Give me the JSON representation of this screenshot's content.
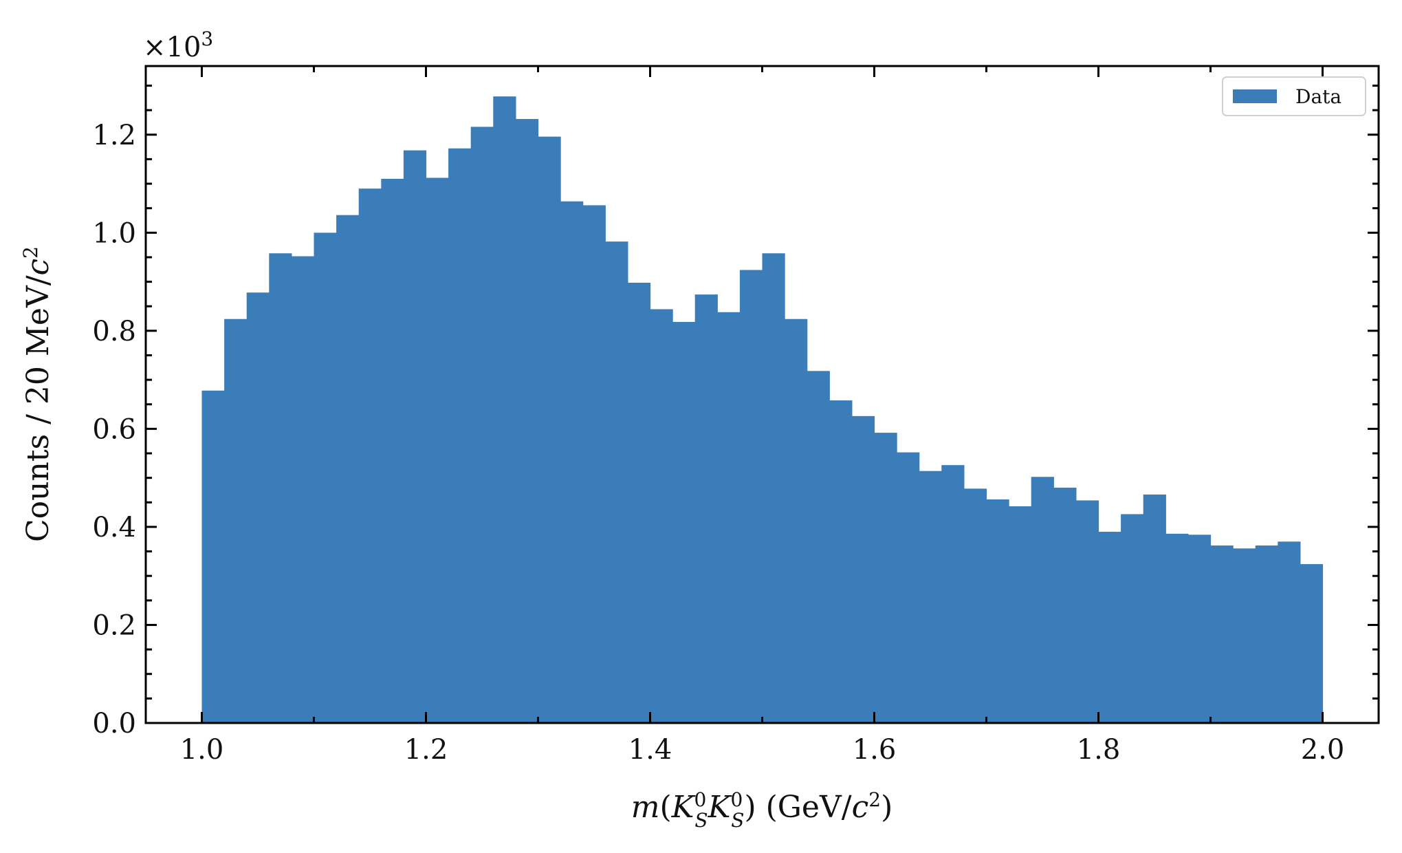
{
  "chart_data": {
    "type": "bar",
    "bin_edges_start": 1.0,
    "bin_width": 0.02,
    "values": [
      678,
      824,
      878,
      958,
      952,
      1000,
      1036,
      1090,
      1110,
      1168,
      1112,
      1172,
      1216,
      1278,
      1232,
      1196,
      1064,
      1056,
      982,
      898,
      844,
      818,
      874,
      838,
      924,
      958,
      824,
      718,
      658,
      626,
      592,
      552,
      514,
      526,
      478,
      456,
      442,
      502,
      480,
      454,
      390,
      426,
      466,
      386,
      384,
      362,
      356,
      362,
      370,
      324
    ],
    "xlim": [
      0.95,
      2.05
    ],
    "ylim": [
      0,
      1340
    ],
    "x_ticks": [
      1.0,
      1.2,
      1.4,
      1.6,
      1.8,
      2.0
    ],
    "x_tick_labels": [
      "1.0",
      "1.2",
      "1.4",
      "1.6",
      "1.8",
      "2.0"
    ],
    "y_ticks": [
      0,
      200,
      400,
      600,
      800,
      1000,
      1200
    ],
    "y_tick_labels": [
      "0.0",
      "0.2",
      "0.4",
      "0.6",
      "0.8",
      "1.0",
      "1.2"
    ],
    "y_multiplier": "×10",
    "y_multiplier_exp": "3",
    "xlabel": {
      "m": "m",
      "open": "(",
      "k1": "K",
      "k1_sup": "0",
      "k1_sub": "S",
      "k2": "K",
      "k2_sup": "0",
      "k2_sub": "S",
      "close": ")",
      "unit_open": " (GeV/",
      "c": "c",
      "c_sup": "2",
      "unit_close": ")"
    },
    "ylabel": {
      "main": "Counts / 20 MeV/",
      "c": "c",
      "c_sup": "2"
    },
    "legend": {
      "label": "Data",
      "position": "top-right"
    },
    "bar_color": "#3a7db8",
    "grid": false
  }
}
